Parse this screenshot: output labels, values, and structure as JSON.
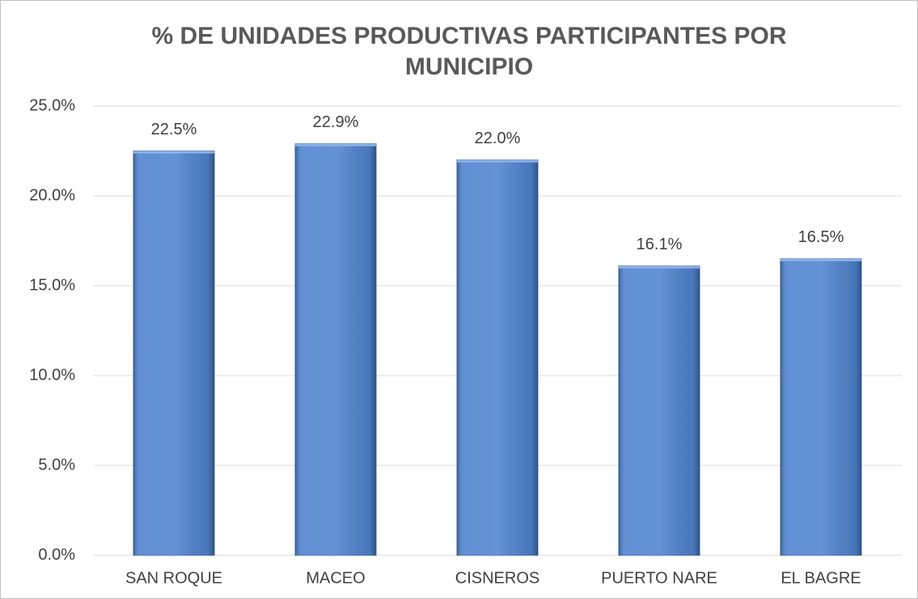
{
  "chart_data": {
    "type": "bar",
    "title": "% DE UNIDADES PRODUCTIVAS PARTICIPANTES POR MUNICIPIO",
    "categories": [
      "SAN ROQUE",
      "MACEO",
      "CISNEROS",
      "PUERTO NARE",
      "EL BAGRE"
    ],
    "values": [
      22.5,
      22.9,
      22.0,
      16.1,
      16.5
    ],
    "value_labels": [
      "22.5%",
      "22.9%",
      "22.0%",
      "16.1%",
      "16.5%"
    ],
    "color": "#4f84cf",
    "ylim": [
      0,
      25
    ],
    "yticks": [
      {
        "value": 0,
        "label": "0.0%"
      },
      {
        "value": 5,
        "label": "5.0%"
      },
      {
        "value": 10,
        "label": "10.0%"
      },
      {
        "value": 15,
        "label": "15.0%"
      },
      {
        "value": 20,
        "label": "20.0%"
      },
      {
        "value": 25,
        "label": "25.0%"
      }
    ],
    "grid": true
  }
}
